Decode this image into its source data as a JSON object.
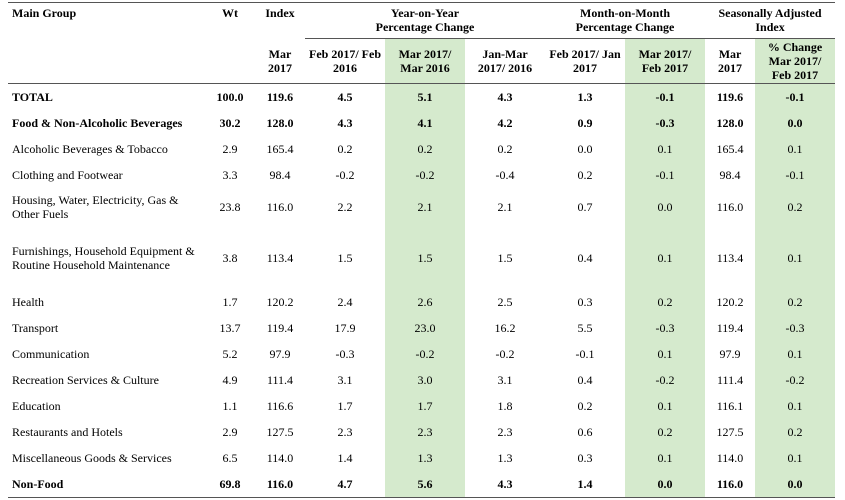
{
  "table": {
    "header": {
      "main_group": "Main Group",
      "wt": "Wt",
      "index": "Index",
      "yoy": "Year-on-Year Percentage Change",
      "mom": "Month-on-Month Percentage Change",
      "sa": "Seasonally Adjusted Index",
      "sub": [
        "Mar 2017",
        "Feb 2017/ Feb 2016",
        "Mar 2017/ Mar 2016",
        "Jan-Mar 2017/ 2016",
        "Feb 2017/ Jan 2017",
        "Mar 2017/ Feb 2017",
        "Mar 2017",
        "% Change Mar 2017/ Feb 2017"
      ]
    },
    "rows": [
      [
        "TOTAL",
        "100.0",
        "119.6",
        "4.5",
        "5.1",
        "4.3",
        "1.3",
        "-0.1",
        "119.6",
        "-0.1"
      ],
      [
        "Food & Non-Alcoholic Beverages",
        "30.2",
        "128.0",
        "4.3",
        "4.1",
        "4.2",
        "0.9",
        "-0.3",
        "128.0",
        "0.0"
      ],
      [
        "Alcoholic Beverages & Tobacco",
        "2.9",
        "165.4",
        "0.2",
        "0.2",
        "0.2",
        "0.0",
        "0.1",
        "165.4",
        "0.1"
      ],
      [
        "Clothing and Footwear",
        "3.3",
        "98.4",
        "-0.2",
        "-0.2",
        "-0.4",
        "0.2",
        "-0.1",
        "98.4",
        "-0.1"
      ],
      [
        "Housing, Water, Electricity, Gas & Other Fuels",
        "23.8",
        "116.0",
        "2.2",
        "2.1",
        "2.1",
        "0.7",
        "0.0",
        "116.0",
        "0.2"
      ],
      [
        "Furnishings, Household Equipment & Routine Household Maintenance",
        "3.8",
        "113.4",
        "1.5",
        "1.5",
        "1.5",
        "0.4",
        "0.1",
        "113.4",
        "0.1"
      ],
      [
        "Health",
        "1.7",
        "120.2",
        "2.4",
        "2.6",
        "2.5",
        "0.3",
        "0.2",
        "120.2",
        "0.2"
      ],
      [
        "Transport",
        "13.7",
        "119.4",
        "17.9",
        "23.0",
        "16.2",
        "5.5",
        "-0.3",
        "119.4",
        "-0.3"
      ],
      [
        "Communication",
        "5.2",
        "97.9",
        "-0.3",
        "-0.2",
        "-0.2",
        "-0.1",
        "0.1",
        "97.9",
        "0.1"
      ],
      [
        "Recreation Services & Culture",
        "4.9",
        "111.4",
        "3.1",
        "3.0",
        "3.1",
        "0.4",
        "-0.2",
        "111.4",
        "-0.2"
      ],
      [
        "Education",
        "1.1",
        "116.6",
        "1.7",
        "1.7",
        "1.8",
        "0.2",
        "0.1",
        "116.1",
        "0.1"
      ],
      [
        "Restaurants and Hotels",
        "2.9",
        "127.5",
        "2.3",
        "2.3",
        "2.3",
        "0.6",
        "0.2",
        "127.5",
        "0.2"
      ],
      [
        "Miscellaneous Goods & Services",
        "6.5",
        "114.0",
        "1.4",
        "1.3",
        "1.3",
        "0.3",
        "0.1",
        "114.0",
        "0.1"
      ],
      [
        "Non-Food",
        "69.8",
        "116.0",
        "4.7",
        "5.6",
        "4.3",
        "1.4",
        "0.0",
        "116.0",
        "0.0"
      ]
    ]
  }
}
